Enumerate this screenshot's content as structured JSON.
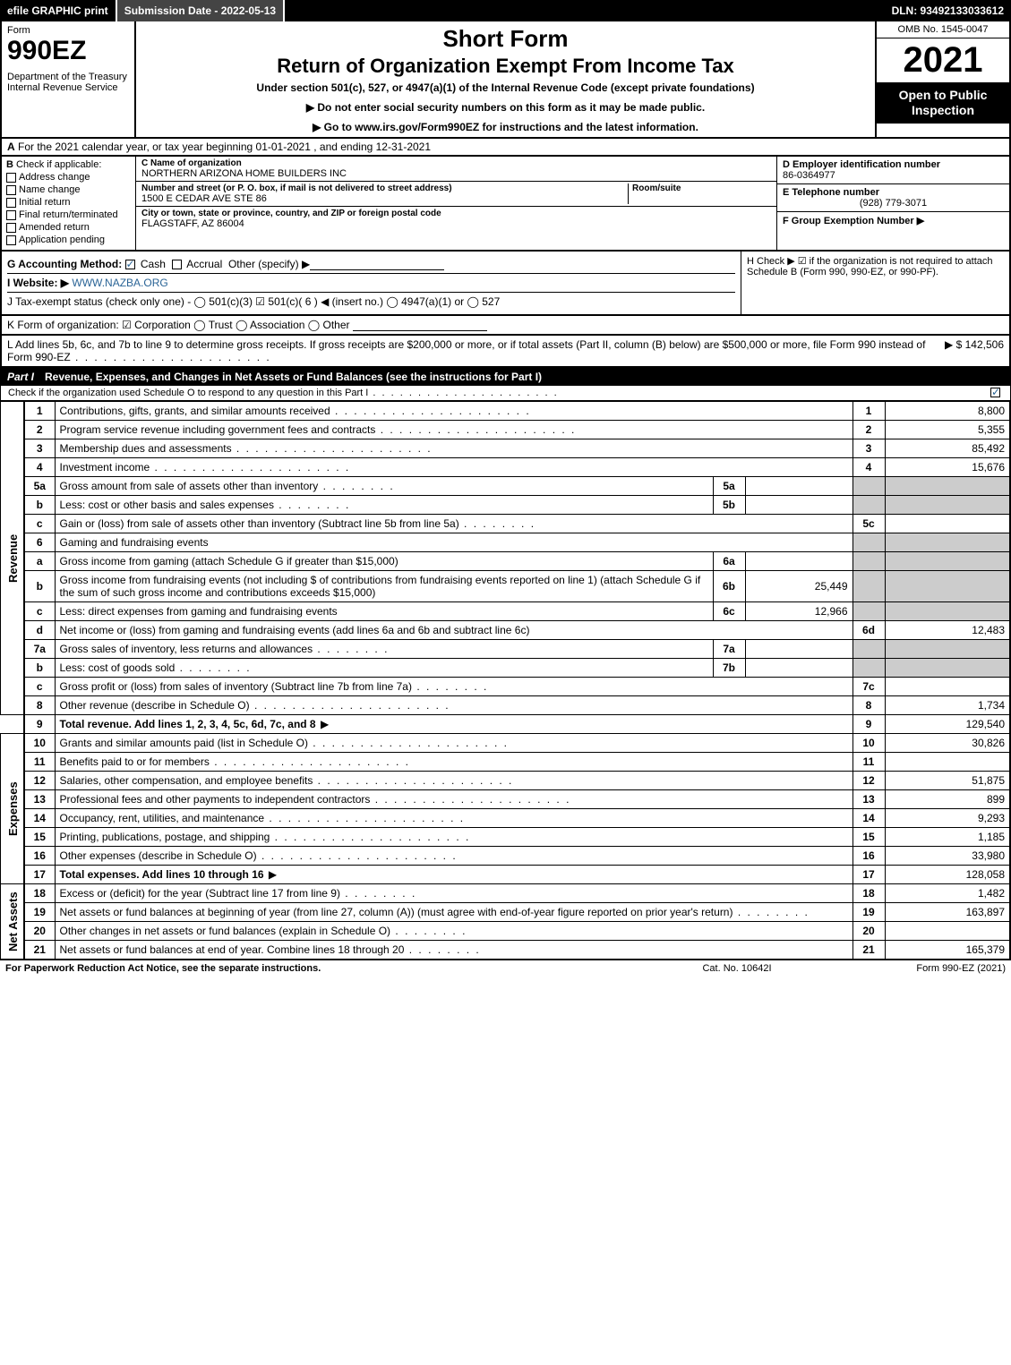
{
  "topbar": {
    "efile": "efile GRAPHIC print",
    "submission": "Submission Date - 2022-05-13",
    "dln": "DLN: 93492133033612"
  },
  "header": {
    "form_word": "Form",
    "form_number": "990EZ",
    "dept": "Department of the Treasury\nInternal Revenue Service",
    "title1": "Short Form",
    "title2": "Return of Organization Exempt From Income Tax",
    "subtitle": "Under section 501(c), 527, or 4947(a)(1) of the Internal Revenue Code (except private foundations)",
    "instr1": "▶ Do not enter social security numbers on this form as it may be made public.",
    "instr2": "▶ Go to www.irs.gov/Form990EZ for instructions and the latest information.",
    "omb": "OMB No. 1545-0047",
    "year": "2021",
    "open_public": "Open to Public Inspection"
  },
  "rowA": {
    "label": "A",
    "text": "For the 2021 calendar year, or tax year beginning 01-01-2021 , and ending 12-31-2021"
  },
  "colB": {
    "label": "B",
    "heading": "Check if applicable:",
    "items": [
      {
        "label": "Address change",
        "checked": false
      },
      {
        "label": "Name change",
        "checked": false
      },
      {
        "label": "Initial return",
        "checked": false
      },
      {
        "label": "Final return/terminated",
        "checked": false
      },
      {
        "label": "Amended return",
        "checked": false
      },
      {
        "label": "Application pending",
        "checked": false
      }
    ]
  },
  "colC": {
    "name_label": "C Name of organization",
    "name": "NORTHERN ARIZONA HOME BUILDERS INC",
    "addr_label": "Number and street (or P. O. box, if mail is not delivered to street address)",
    "room_label": "Room/suite",
    "addr": "1500 E CEDAR AVE STE 86",
    "city_label": "City or town, state or province, country, and ZIP or foreign postal code",
    "city": "FLAGSTAFF, AZ  86004"
  },
  "colDEF": {
    "d_label": "D Employer identification number",
    "d_val": "86-0364977",
    "e_label": "E Telephone number",
    "e_val": "(928) 779-3071",
    "f_label": "F Group Exemption Number ▶",
    "f_val": ""
  },
  "rowG": {
    "label": "G Accounting Method:",
    "cash": "Cash",
    "accrual": "Accrual",
    "other": "Other (specify) ▶"
  },
  "rowH": {
    "text": "H  Check ▶ ☑ if the organization is not required to attach Schedule B (Form 990, 990-EZ, or 990-PF)."
  },
  "rowI": {
    "label": "I Website: ▶",
    "value": "WWW.NAZBA.ORG"
  },
  "rowJ": {
    "text": "J Tax-exempt status (check only one) - ◯ 501(c)(3) ☑ 501(c)( 6 ) ◀ (insert no.) ◯ 4947(a)(1) or ◯ 527"
  },
  "rowK": {
    "text": "K Form of organization: ☑ Corporation  ◯ Trust  ◯ Association  ◯ Other"
  },
  "rowL": {
    "text": "L Add lines 5b, 6c, and 7b to line 9 to determine gross receipts. If gross receipts are $200,000 or more, or if total assets (Part II, column (B) below) are $500,000 or more, file Form 990 instead of Form 990-EZ",
    "amount": "▶ $ 142,506"
  },
  "part1": {
    "num": "Part I",
    "title": "Revenue, Expenses, and Changes in Net Assets or Fund Balances (see the instructions for Part I)",
    "check_text": "Check if the organization used Schedule O to respond to any question in this Part I",
    "checked": true
  },
  "sections": {
    "revenue": "Revenue",
    "expenses": "Expenses",
    "netassets": "Net Assets"
  },
  "lines": {
    "l1": {
      "num": "1",
      "desc": "Contributions, gifts, grants, and similar amounts received",
      "ref": "1",
      "amt": "8,800"
    },
    "l2": {
      "num": "2",
      "desc": "Program service revenue including government fees and contracts",
      "ref": "2",
      "amt": "5,355"
    },
    "l3": {
      "num": "3",
      "desc": "Membership dues and assessments",
      "ref": "3",
      "amt": "85,492"
    },
    "l4": {
      "num": "4",
      "desc": "Investment income",
      "ref": "4",
      "amt": "15,676"
    },
    "l5a": {
      "num": "5a",
      "desc": "Gross amount from sale of assets other than inventory",
      "sub": "5a",
      "subval": ""
    },
    "l5b": {
      "num": "b",
      "desc": "Less: cost or other basis and sales expenses",
      "sub": "5b",
      "subval": ""
    },
    "l5c": {
      "num": "c",
      "desc": "Gain or (loss) from sale of assets other than inventory (Subtract line 5b from line 5a)",
      "ref": "5c",
      "amt": ""
    },
    "l6": {
      "num": "6",
      "desc": "Gaming and fundraising events"
    },
    "l6a": {
      "num": "a",
      "desc": "Gross income from gaming (attach Schedule G if greater than $15,000)",
      "sub": "6a",
      "subval": ""
    },
    "l6b": {
      "num": "b",
      "desc": "Gross income from fundraising events (not including $                     of contributions from fundraising events reported on line 1) (attach Schedule G if the sum of such gross income and contributions exceeds $15,000)",
      "sub": "6b",
      "subval": "25,449"
    },
    "l6c": {
      "num": "c",
      "desc": "Less: direct expenses from gaming and fundraising events",
      "sub": "6c",
      "subval": "12,966"
    },
    "l6d": {
      "num": "d",
      "desc": "Net income or (loss) from gaming and fundraising events (add lines 6a and 6b and subtract line 6c)",
      "ref": "6d",
      "amt": "12,483"
    },
    "l7a": {
      "num": "7a",
      "desc": "Gross sales of inventory, less returns and allowances",
      "sub": "7a",
      "subval": ""
    },
    "l7b": {
      "num": "b",
      "desc": "Less: cost of goods sold",
      "sub": "7b",
      "subval": ""
    },
    "l7c": {
      "num": "c",
      "desc": "Gross profit or (loss) from sales of inventory (Subtract line 7b from line 7a)",
      "ref": "7c",
      "amt": ""
    },
    "l8": {
      "num": "8",
      "desc": "Other revenue (describe in Schedule O)",
      "ref": "8",
      "amt": "1,734"
    },
    "l9": {
      "num": "9",
      "desc": "Total revenue. Add lines 1, 2, 3, 4, 5c, 6d, 7c, and 8",
      "ref": "9",
      "amt": "129,540"
    },
    "l10": {
      "num": "10",
      "desc": "Grants and similar amounts paid (list in Schedule O)",
      "ref": "10",
      "amt": "30,826"
    },
    "l11": {
      "num": "11",
      "desc": "Benefits paid to or for members",
      "ref": "11",
      "amt": ""
    },
    "l12": {
      "num": "12",
      "desc": "Salaries, other compensation, and employee benefits",
      "ref": "12",
      "amt": "51,875"
    },
    "l13": {
      "num": "13",
      "desc": "Professional fees and other payments to independent contractors",
      "ref": "13",
      "amt": "899"
    },
    "l14": {
      "num": "14",
      "desc": "Occupancy, rent, utilities, and maintenance",
      "ref": "14",
      "amt": "9,293"
    },
    "l15": {
      "num": "15",
      "desc": "Printing, publications, postage, and shipping",
      "ref": "15",
      "amt": "1,185"
    },
    "l16": {
      "num": "16",
      "desc": "Other expenses (describe in Schedule O)",
      "ref": "16",
      "amt": "33,980"
    },
    "l17": {
      "num": "17",
      "desc": "Total expenses. Add lines 10 through 16",
      "ref": "17",
      "amt": "128,058"
    },
    "l18": {
      "num": "18",
      "desc": "Excess or (deficit) for the year (Subtract line 17 from line 9)",
      "ref": "18",
      "amt": "1,482"
    },
    "l19": {
      "num": "19",
      "desc": "Net assets or fund balances at beginning of year (from line 27, column (A)) (must agree with end-of-year figure reported on prior year's return)",
      "ref": "19",
      "amt": "163,897"
    },
    "l20": {
      "num": "20",
      "desc": "Other changes in net assets or fund balances (explain in Schedule O)",
      "ref": "20",
      "amt": ""
    },
    "l21": {
      "num": "21",
      "desc": "Net assets or fund balances at end of year. Combine lines 18 through 20",
      "ref": "21",
      "amt": "165,379"
    }
  },
  "footer": {
    "left": "For Paperwork Reduction Act Notice, see the separate instructions.",
    "mid": "Cat. No. 10642I",
    "right": "Form 990-EZ (2021)"
  },
  "colors": {
    "black": "#000000",
    "white": "#ffffff",
    "grey_shade": "#cccccc",
    "link": "#2a6496"
  }
}
